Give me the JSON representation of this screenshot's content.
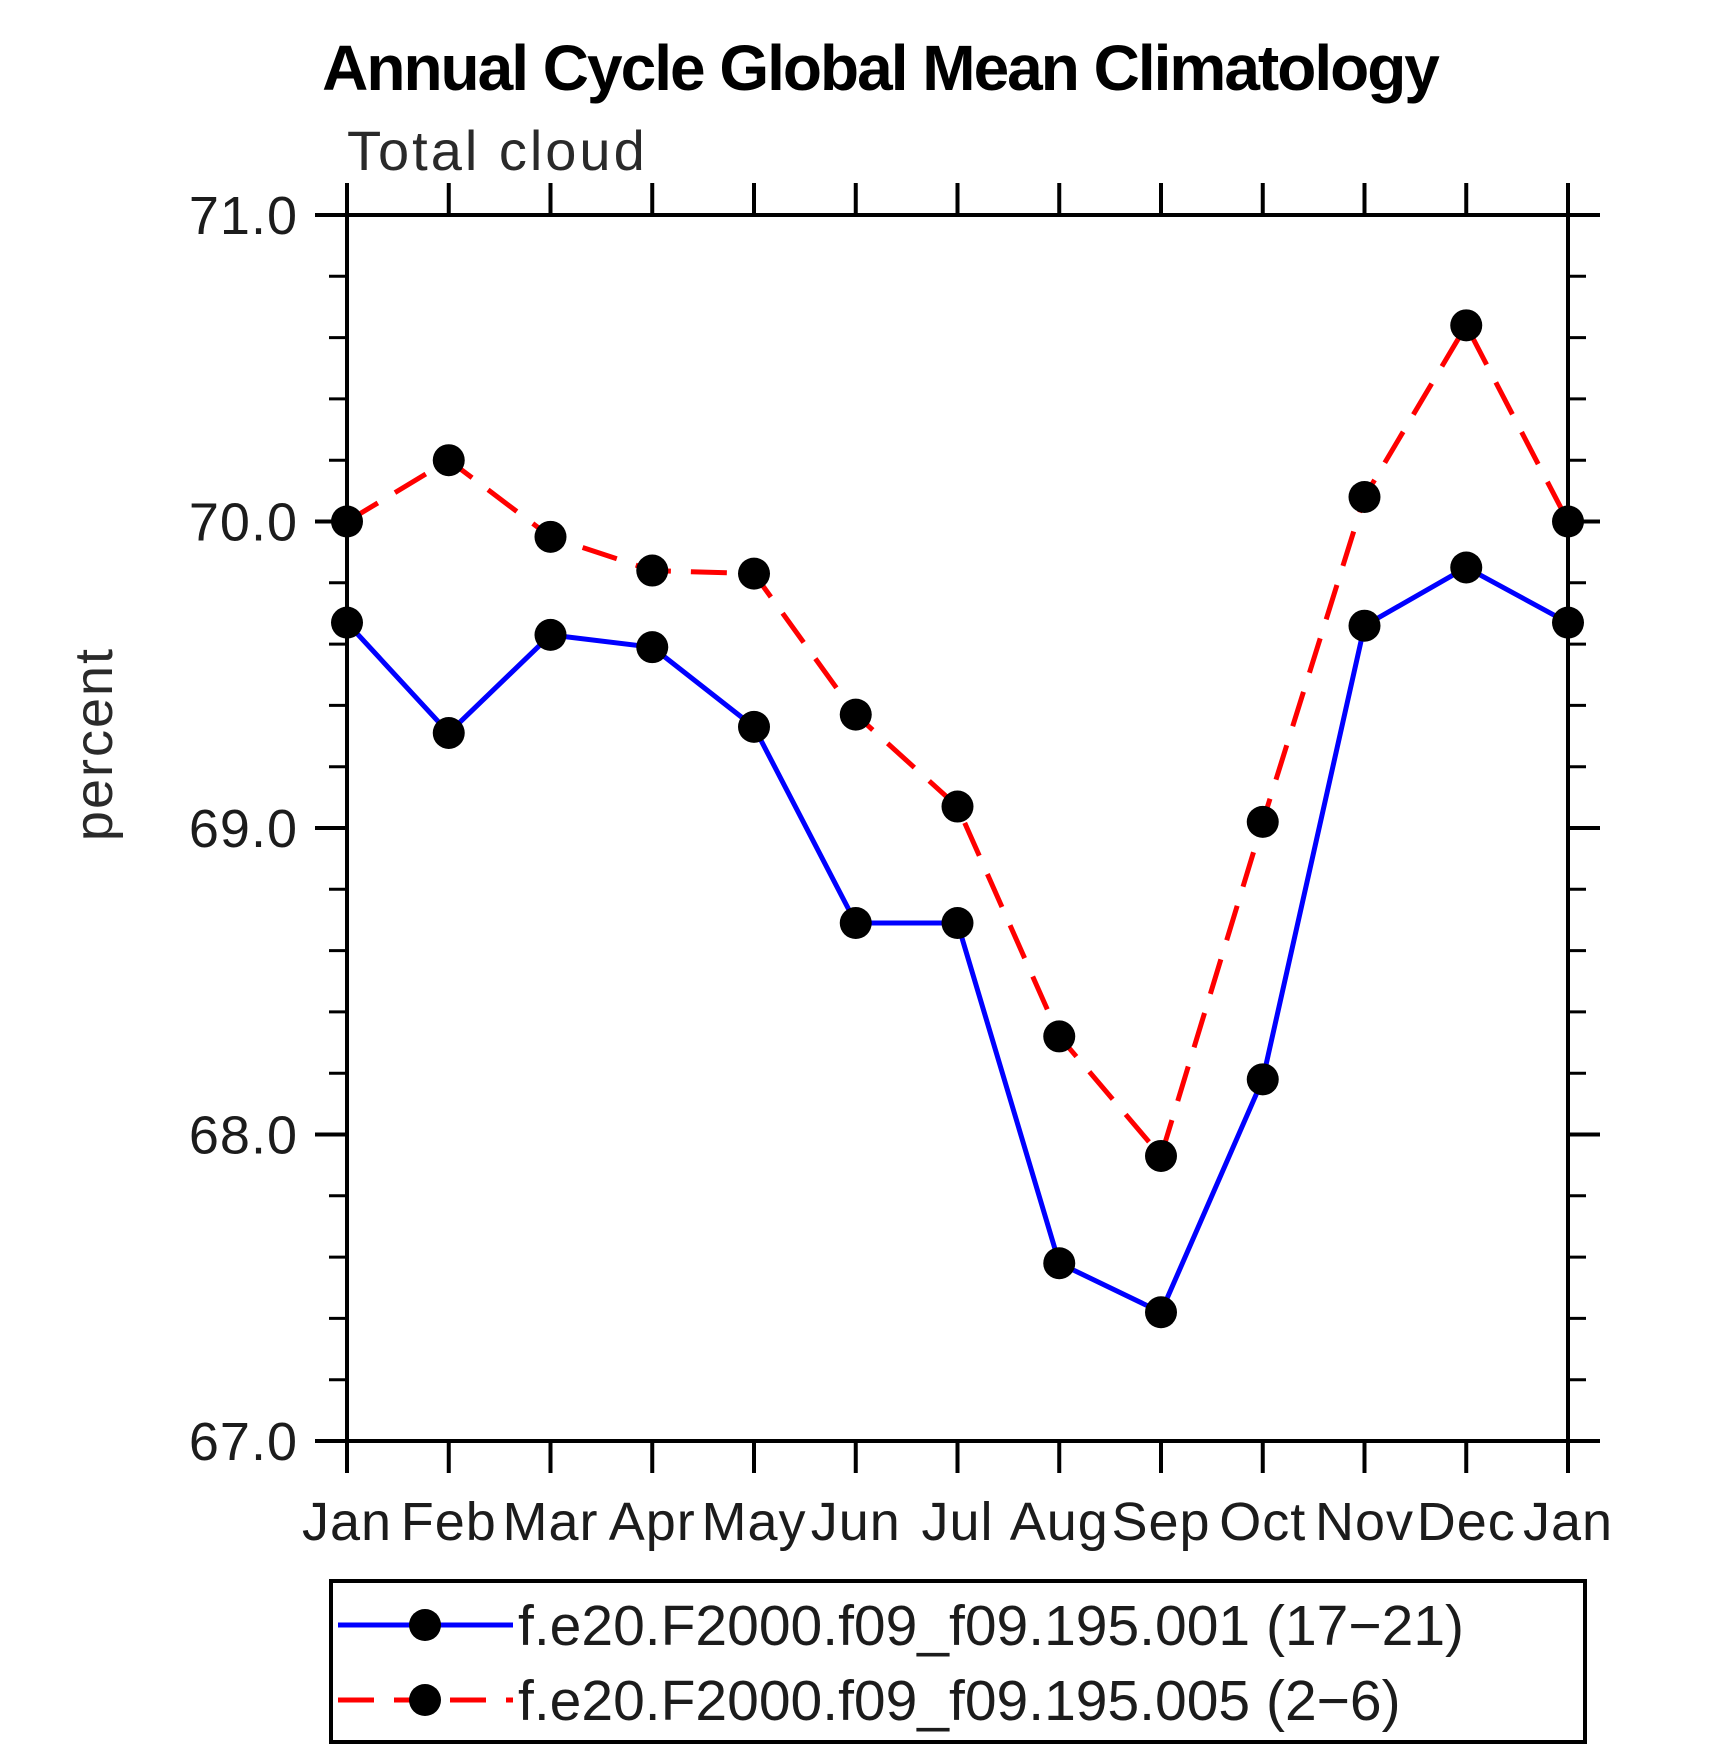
{
  "page": {
    "background": "#ffffff"
  },
  "chart_data": {
    "type": "line",
    "title": "Annual Cycle Global Mean Climatology",
    "subtitle": "Total cloud",
    "xlabel": "",
    "ylabel": "percent",
    "ylim": [
      67.0,
      71.0
    ],
    "ytick_values": [
      67.0,
      68.0,
      69.0,
      70.0,
      71.0
    ],
    "ytick_labels": [
      "67.0",
      "68.0",
      "69.0",
      "70.0",
      "71.0"
    ],
    "minor_tick_step": 0.2,
    "grid": false,
    "categories": [
      "Jan",
      "Feb",
      "Mar",
      "Apr",
      "May",
      "Jun",
      "Jul",
      "Aug",
      "Sep",
      "Oct",
      "Nov",
      "Dec",
      "Jan"
    ],
    "series": [
      {
        "name": "f.e20.F2000.f09_f09.195.001 (17−21)",
        "color": "#0000ff",
        "line_style": "solid",
        "marker": "filled-circle",
        "marker_color": "#000000",
        "values": [
          69.67,
          69.31,
          69.63,
          69.59,
          69.33,
          68.69,
          68.69,
          67.58,
          67.42,
          68.18,
          69.66,
          69.85,
          69.67
        ]
      },
      {
        "name": "f.e20.F2000.f09_f09.195.005 (2−6)",
        "color": "#ff0000",
        "line_style": "dashed",
        "marker": "filled-circle",
        "marker_color": "#000000",
        "values": [
          70.0,
          70.2,
          69.95,
          69.84,
          69.83,
          69.37,
          69.07,
          68.32,
          67.93,
          69.02,
          70.08,
          70.64,
          70.0
        ]
      }
    ],
    "legend_position": "bottom"
  }
}
